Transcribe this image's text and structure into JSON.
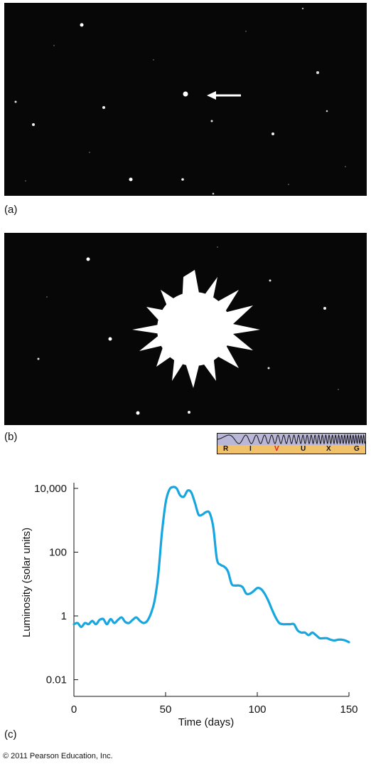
{
  "panels": {
    "a": "(a)",
    "b": "(b)",
    "c": "(c)"
  },
  "spectrum": {
    "bands": [
      {
        "label": "R",
        "color": "#111111"
      },
      {
        "label": "I",
        "color": "#111111"
      },
      {
        "label": "V",
        "color": "#d42020"
      },
      {
        "label": "U",
        "color": "#111111"
      },
      {
        "label": "X",
        "color": "#111111"
      },
      {
        "label": "G",
        "color": "#111111"
      }
    ]
  },
  "chart_data": {
    "type": "line",
    "title": "",
    "xlabel": "Time (days)",
    "ylabel": "Luminosity (solar units)",
    "xlim": [
      0,
      150
    ],
    "ylim": [
      0.003,
      15000
    ],
    "yscale": "log",
    "xticks": [
      0,
      50,
      100,
      150
    ],
    "yticks": [
      {
        "value": 0.01,
        "label": "0.01"
      },
      {
        "value": 1,
        "label": "1"
      },
      {
        "value": 100,
        "label": "100"
      },
      {
        "value": 10000,
        "label": "10,000"
      }
    ],
    "grid": false,
    "series": [
      {
        "color": "#17a6e0",
        "x": [
          0,
          2,
          4,
          6,
          8,
          10,
          12,
          14,
          16,
          18,
          20,
          22,
          24,
          26,
          28,
          30,
          32,
          34,
          36,
          38,
          40,
          42,
          44,
          46,
          48,
          50,
          52,
          54,
          56,
          58,
          60,
          62,
          64,
          66,
          68,
          70,
          72,
          74,
          76,
          78,
          80,
          82,
          84,
          86,
          88,
          90,
          92,
          94,
          96,
          98,
          100,
          102,
          104,
          106,
          108,
          110,
          112,
          114,
          116,
          118,
          120,
          122,
          124,
          126,
          128,
          130,
          132,
          134,
          136,
          138,
          140,
          142,
          144,
          146,
          148,
          150
        ],
        "y": [
          0.55,
          0.6,
          0.45,
          0.6,
          0.55,
          0.7,
          0.55,
          0.75,
          0.8,
          0.55,
          0.8,
          0.6,
          0.75,
          0.9,
          0.65,
          0.6,
          0.75,
          0.9,
          0.7,
          0.6,
          0.7,
          1.2,
          3,
          20,
          400,
          3500,
          9000,
          11000,
          10000,
          6000,
          5500,
          8500,
          7500,
          3500,
          1500,
          1500,
          1800,
          1700,
          600,
          60,
          40,
          35,
          25,
          10,
          9,
          9,
          8,
          5,
          5,
          6,
          7.5,
          7,
          5,
          3,
          1.6,
          0.9,
          0.6,
          0.55,
          0.55,
          0.55,
          0.55,
          0.35,
          0.3,
          0.3,
          0.25,
          0.3,
          0.25,
          0.2,
          0.2,
          0.2,
          0.18,
          0.17,
          0.18,
          0.18,
          0.17,
          0.15
        ]
      }
    ]
  },
  "copyright": "© 2011 Pearson Education, Inc."
}
